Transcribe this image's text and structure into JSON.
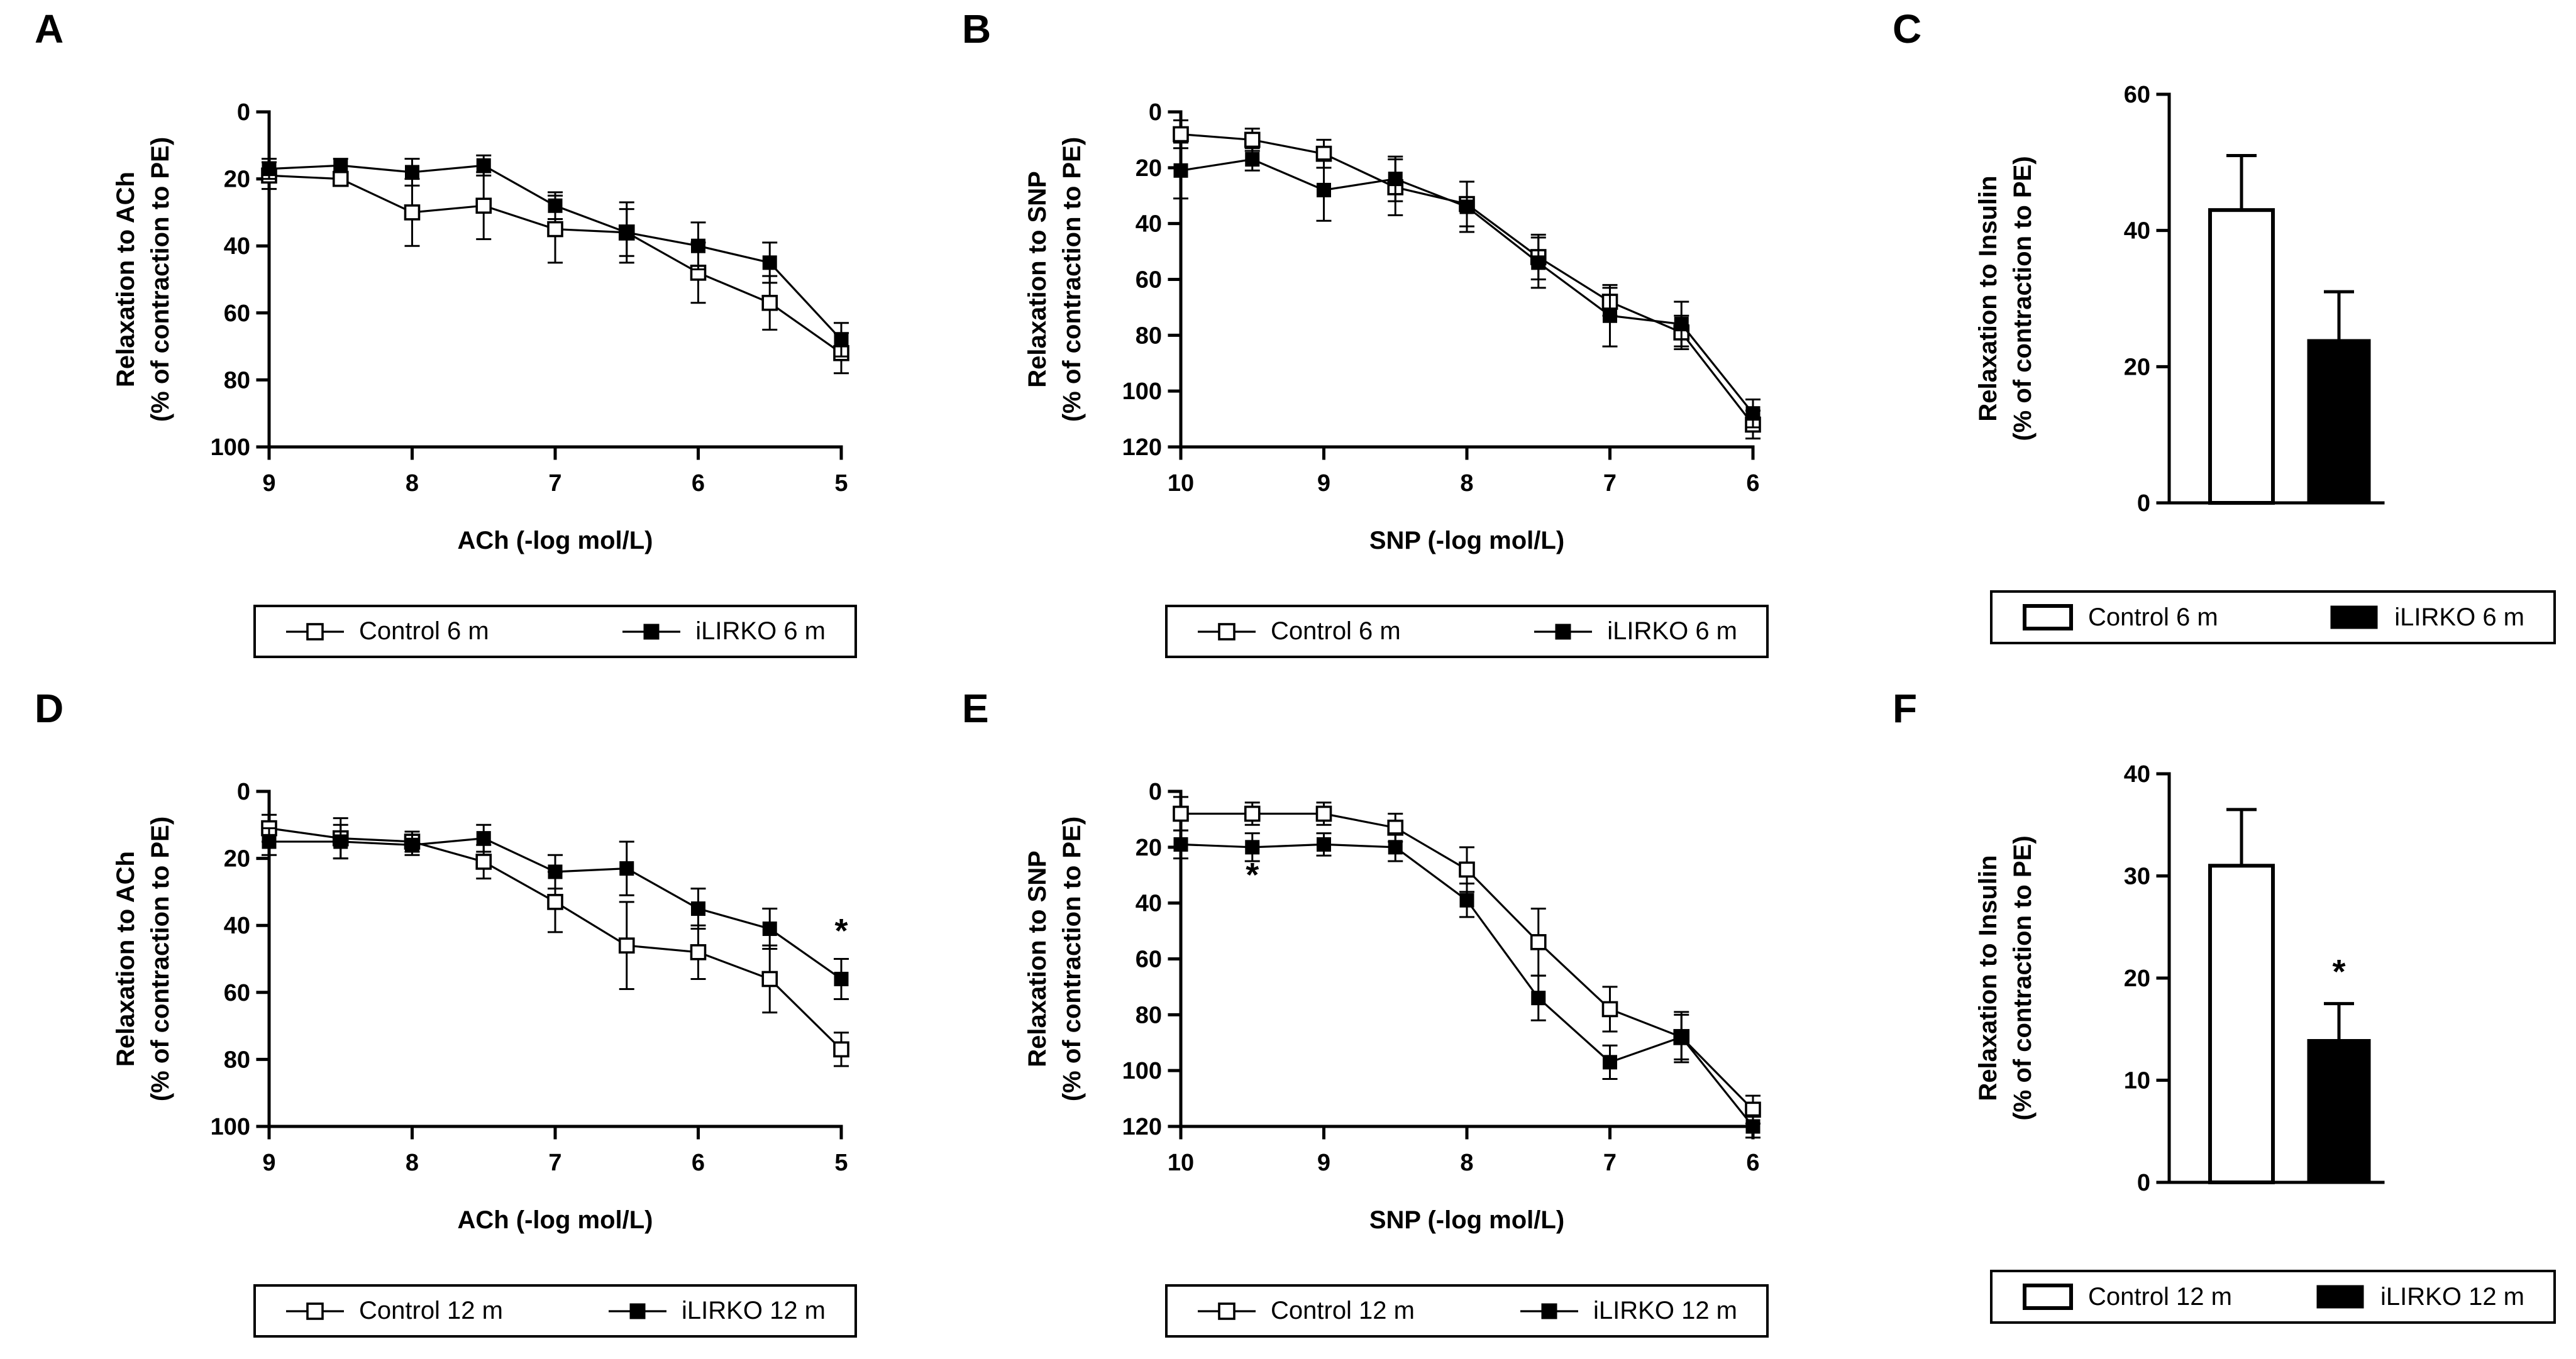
{
  "figure": {
    "background_color": "#ffffff",
    "ink_color": "#000000",
    "description": "Six-panel vascular relaxation figure (A-F)"
  },
  "chart_data": [
    {
      "letter": "A",
      "type": "line",
      "ylabel_line1": "Relaxation to ACh",
      "ylabel_line2": "(% of contraction to PE)",
      "xlabel": "ACh (-log mol/L)",
      "x_axis": {
        "min": 9,
        "max": 5,
        "ticks": [
          9,
          8,
          7,
          6,
          5
        ]
      },
      "y_axis": {
        "min": 0,
        "max": 100,
        "ticks": [
          0,
          20,
          40,
          60,
          80,
          100
        ],
        "inverted": true
      },
      "grid": false,
      "x": [
        9,
        8.5,
        8,
        7.5,
        7,
        6.5,
        6,
        5.5,
        5
      ],
      "series": [
        {
          "name": "Control 6 m",
          "marker": "open-square",
          "values": [
            19,
            20,
            30,
            28,
            35,
            36,
            48,
            57,
            72
          ],
          "errors": [
            4,
            2,
            10,
            10,
            10,
            9,
            9,
            8,
            6
          ]
        },
        {
          "name": "iLIRKO 6 m",
          "marker": "filled-square",
          "values": [
            17,
            16,
            18,
            16,
            28,
            36,
            40,
            45,
            68
          ],
          "errors": [
            3,
            2,
            4,
            3,
            4,
            7,
            7,
            6,
            5
          ]
        }
      ],
      "significance": [],
      "legend": {
        "position": "below",
        "entries": [
          {
            "label": "Control 6 m",
            "marker": "open-square-line"
          },
          {
            "label": "iLIRKO 6 m",
            "marker": "filled-square-line"
          }
        ]
      }
    },
    {
      "letter": "B",
      "type": "line",
      "ylabel_line1": "Relaxation to SNP",
      "ylabel_line2": "(% of contraction to PE)",
      "xlabel": "SNP (-log mol/L)",
      "x_axis": {
        "min": 10,
        "max": 6,
        "ticks": [
          10,
          9,
          8,
          7,
          6
        ]
      },
      "y_axis": {
        "min": 0,
        "max": 120,
        "ticks": [
          0,
          20,
          40,
          60,
          80,
          100,
          120
        ],
        "inverted": true
      },
      "grid": false,
      "x": [
        10,
        9.5,
        9,
        8.5,
        8,
        7.5,
        7,
        6.5,
        6
      ],
      "series": [
        {
          "name": "Control 6 m",
          "marker": "open-square",
          "values": [
            8,
            10,
            15,
            27,
            33,
            52,
            68,
            79,
            112
          ],
          "errors": [
            5,
            4,
            5,
            10,
            8,
            8,
            5,
            6,
            5
          ]
        },
        {
          "name": "iLIRKO 6 m",
          "marker": "filled-square",
          "values": [
            21,
            17,
            28,
            24,
            34,
            54,
            73,
            76,
            108
          ],
          "errors": [
            10,
            4,
            11,
            8,
            9,
            9,
            11,
            8,
            5
          ]
        }
      ],
      "significance": [],
      "legend": {
        "position": "below",
        "entries": [
          {
            "label": "Control 6 m",
            "marker": "open-square-line"
          },
          {
            "label": "iLIRKO 6 m",
            "marker": "filled-square-line"
          }
        ]
      }
    },
    {
      "letter": "C",
      "type": "bar",
      "ylabel_line1": "Relaxation to Insulin",
      "ylabel_line2": "(% of contraction to PE)",
      "xlabel": "",
      "y_axis": {
        "min": 0,
        "max": 60,
        "ticks": [
          0,
          20,
          40,
          60
        ],
        "inverted": false
      },
      "grid": false,
      "categories": [
        "Control 6 m",
        "iLIRKO 6 m"
      ],
      "values": [
        43,
        24
      ],
      "errors": [
        8,
        7
      ],
      "bar_styles": [
        "open",
        "filled"
      ],
      "significance": [],
      "legend": {
        "position": "below",
        "entries": [
          {
            "label": "Control 6 m",
            "marker": "open-rect"
          },
          {
            "label": "iLIRKO 6 m",
            "marker": "filled-rect"
          }
        ]
      }
    },
    {
      "letter": "D",
      "type": "line",
      "ylabel_line1": "Relaxation to ACh",
      "ylabel_line2": "(% of contraction to PE)",
      "xlabel": "ACh (-log mol/L)",
      "x_axis": {
        "min": 9,
        "max": 5,
        "ticks": [
          9,
          8,
          7,
          6,
          5
        ]
      },
      "y_axis": {
        "min": 0,
        "max": 100,
        "ticks": [
          0,
          20,
          40,
          60,
          80,
          100
        ],
        "inverted": true
      },
      "grid": false,
      "x": [
        9,
        8.5,
        8,
        7.5,
        7,
        6.5,
        6,
        5.5,
        5
      ],
      "series": [
        {
          "name": "Control 12 m",
          "marker": "open-square",
          "values": [
            11,
            14,
            15,
            21,
            33,
            46,
            48,
            56,
            77
          ],
          "errors": [
            4,
            6,
            3,
            5,
            9,
            13,
            8,
            10,
            5
          ]
        },
        {
          "name": "iLIRKO 12 m",
          "marker": "filled-square",
          "values": [
            15,
            15,
            16,
            14,
            24,
            23,
            35,
            41,
            56
          ],
          "errors": [
            4,
            5,
            3,
            4,
            5,
            8,
            6,
            6,
            6
          ]
        }
      ],
      "significance": [
        {
          "symbol": "*",
          "x": 5,
          "value": 45
        }
      ],
      "legend": {
        "position": "below",
        "entries": [
          {
            "label": "Control 12 m",
            "marker": "open-square-line"
          },
          {
            "label": "iLIRKO 12 m",
            "marker": "filled-square-line"
          }
        ]
      }
    },
    {
      "letter": "E",
      "type": "line",
      "ylabel_line1": "Relaxation to SNP",
      "ylabel_line2": "(% of contraction to PE)",
      "xlabel": "SNP (-log mol/L)",
      "x_axis": {
        "min": 10,
        "max": 6,
        "ticks": [
          10,
          9,
          8,
          7,
          6
        ]
      },
      "y_axis": {
        "min": 0,
        "max": 120,
        "ticks": [
          0,
          20,
          40,
          60,
          80,
          100,
          120
        ],
        "inverted": true
      },
      "grid": false,
      "x": [
        10,
        9.5,
        9,
        8.5,
        8,
        7.5,
        7,
        6.5,
        6
      ],
      "series": [
        {
          "name": "Control 12 m",
          "marker": "open-square",
          "values": [
            8,
            8,
            8,
            13,
            28,
            54,
            78,
            88,
            114
          ],
          "errors": [
            6,
            4,
            4,
            5,
            8,
            12,
            8,
            8,
            5
          ]
        },
        {
          "name": "iLIRKO 12 m",
          "marker": "filled-square",
          "values": [
            19,
            20,
            19,
            20,
            39,
            74,
            97,
            88,
            120
          ],
          "errors": [
            5,
            5,
            4,
            5,
            6,
            8,
            6,
            9,
            4
          ]
        }
      ],
      "significance": [
        {
          "symbol": "*",
          "x": 9.5,
          "value": 34
        }
      ],
      "legend": {
        "position": "below",
        "entries": [
          {
            "label": "Control 12 m",
            "marker": "open-square-line"
          },
          {
            "label": "iLIRKO 12 m",
            "marker": "filled-square-line"
          }
        ]
      }
    },
    {
      "letter": "F",
      "type": "bar",
      "ylabel_line1": "Relaxation to Insulin",
      "ylabel_line2": "(% of contraction to PE)",
      "xlabel": "",
      "y_axis": {
        "min": 0,
        "max": 40,
        "ticks": [
          0,
          10,
          20,
          30,
          40
        ],
        "inverted": false
      },
      "grid": false,
      "categories": [
        "Control 12 m",
        "iLIRKO 12 m"
      ],
      "values": [
        31,
        14
      ],
      "errors": [
        5.5,
        3.5
      ],
      "bar_styles": [
        "open",
        "filled"
      ],
      "significance": [
        {
          "symbol": "*",
          "bar_index": 1,
          "value": 19.5
        }
      ],
      "legend": {
        "position": "below",
        "entries": [
          {
            "label": "Control 12 m",
            "marker": "open-rect"
          },
          {
            "label": "iLIRKO 12 m",
            "marker": "filled-rect"
          }
        ]
      }
    }
  ]
}
